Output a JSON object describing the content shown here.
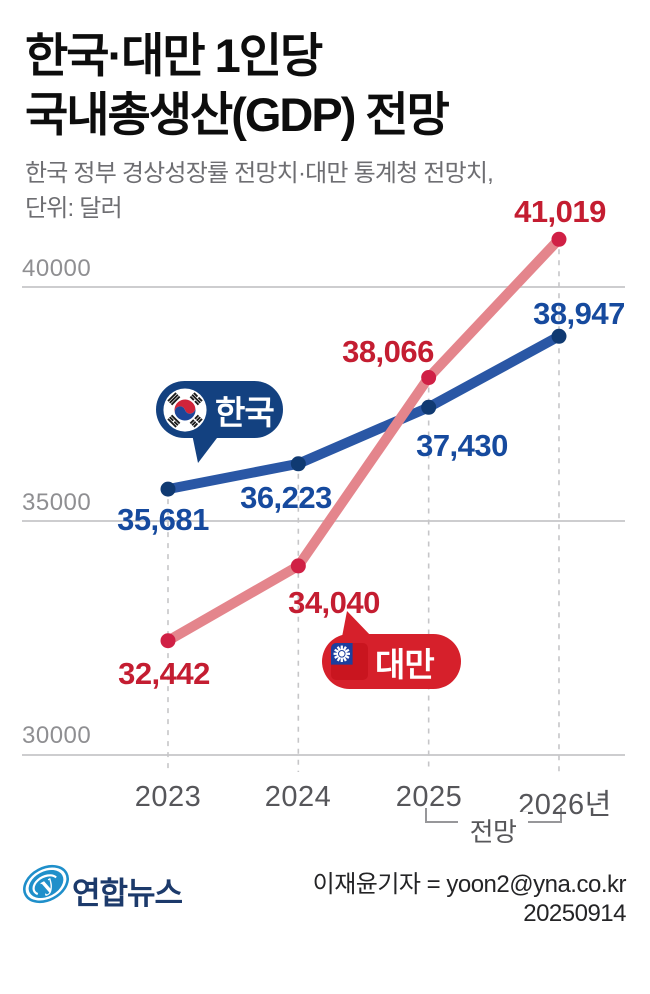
{
  "title": {
    "line1": "한국·대만 1인당",
    "line2": "국내총생산(GDP) 전망"
  },
  "subtitle": {
    "line1": "한국 정부 경상성장률 전망치·대만 통계청 전망치,",
    "line2": "단위: 달러"
  },
  "chart_data": {
    "type": "line",
    "title": "한국·대만 1인당 국내총생산(GDP) 전망",
    "unit": "달러",
    "categories": [
      "2023",
      "2024",
      "2025",
      "2026"
    ],
    "x_tick_labels": [
      "2023",
      "2024",
      "2025",
      "2026년"
    ],
    "yticks": [
      40000,
      35000,
      30000
    ],
    "ylim": [
      29000,
      41500
    ],
    "grid": "horizontal",
    "forecast_label": "전망",
    "forecast_years": [
      "2025",
      "2026"
    ],
    "series": [
      {
        "name": "한국",
        "values": [
          35681,
          36223,
          37430,
          38947
        ],
        "value_labels": [
          "35,681",
          "36,223",
          "37,430",
          "38,947"
        ],
        "line_color": "#2a57a5",
        "dot_color": "#103a72",
        "label_color": "#164a9e"
      },
      {
        "name": "대만",
        "values": [
          32442,
          34040,
          38066,
          41019
        ],
        "value_labels": [
          "32,442",
          "34,040",
          "38,066",
          "41,019"
        ],
        "line_color": "#e4858c",
        "dot_color": "#d02045",
        "label_color": "#c41d31"
      }
    ]
  },
  "badges": {
    "korea": {
      "label": "한국",
      "bg": "#134180",
      "flag": "south-korea-flag"
    },
    "taiwan": {
      "label": "대만",
      "bg": "#d6202b",
      "flag": "taiwan-flag"
    }
  },
  "footer": {
    "brand": "연합뉴스",
    "byline": "이재윤기자 = yoon2@yna.co.kr",
    "date": "20250914"
  }
}
